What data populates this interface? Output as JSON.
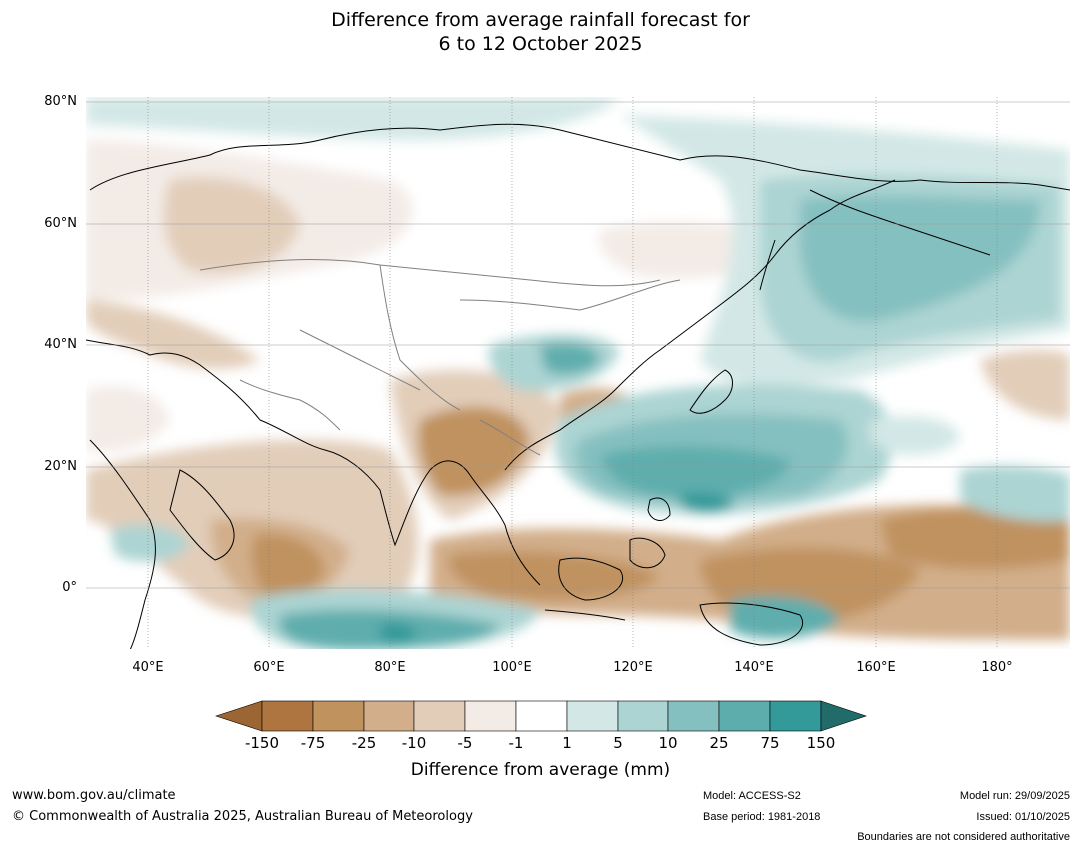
{
  "title": {
    "line1": "Difference from average rainfall forecast for",
    "line2": "6 to 12 October 2025"
  },
  "map": {
    "lat_labels": [
      "80°N",
      "60°N",
      "40°N",
      "20°N",
      "0°"
    ],
    "lon_labels": [
      "40°E",
      "60°E",
      "80°E",
      "100°E",
      "120°E",
      "140°E",
      "160°E",
      "180°"
    ],
    "lon_range": [
      30,
      192
    ],
    "lat_range": [
      -10,
      81
    ]
  },
  "legend": {
    "title": "Difference from average (mm)",
    "ticks": [
      "-150",
      "-75",
      "-25",
      "-10",
      "-5",
      "-1",
      "1",
      "5",
      "10",
      "25",
      "75",
      "150"
    ],
    "colors": [
      "#9b6633",
      "#ae7540",
      "#c0925e",
      "#d2ae8a",
      "#e2cdb9",
      "#f3ebe6",
      "#ffffff",
      "#d3e8e6",
      "#acd4d3",
      "#85c0c0",
      "#5eadad",
      "#339999",
      "#216b6b"
    ]
  },
  "footer": {
    "website": "www.bom.gov.au/climate",
    "copyright": "© Commonwealth of Australia 2025, Australian Bureau of Meteorology",
    "model": "Model: ACCESS-S2",
    "base_period": "Base period: 1981-2018",
    "model_run": "Model run: 29/09/2025",
    "issued": "Issued: 01/10/2025",
    "disclaimer": "Boundaries are not considered authoritative"
  }
}
